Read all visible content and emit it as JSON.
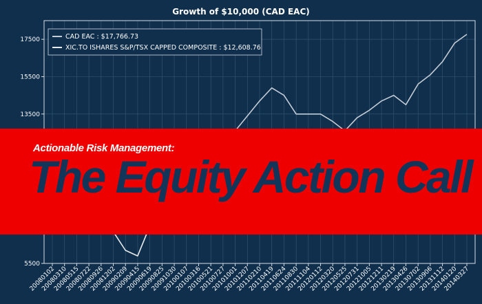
{
  "chart_data": {
    "type": "line",
    "title": "Growth of $10,000 (CAD EAC)",
    "xlabel": "",
    "ylabel": "",
    "ylim": [
      5500,
      18500
    ],
    "y_ticks": [
      5500,
      7500,
      9500,
      11500,
      13500,
      15500,
      17500
    ],
    "grid": true,
    "legend_position": "top-left",
    "x_tick_labels": [
      "20080102",
      "20080310",
      "20080515",
      "20080722",
      "20080926",
      "20081202",
      "20090209",
      "20090415",
      "20090619",
      "20090825",
      "20091030",
      "20100107",
      "20100316",
      "20100521",
      "20100727",
      "20101001",
      "20101207",
      "20110210",
      "20110419",
      "20110624",
      "20110830",
      "20111104",
      "20120112",
      "20120320",
      "20120525",
      "20120731",
      "20121005",
      "20121211",
      "20130219",
      "20130426",
      "20130702",
      "20130906",
      "20131112",
      "20140120",
      "20140327"
    ],
    "series": [
      {
        "name": "CAD EAC : $17,766.73",
        "color": "#c4ccd6",
        "x_index": [
          0,
          2,
          3,
          4,
          5,
          6,
          7,
          9,
          11,
          12,
          13,
          15,
          17,
          18,
          19,
          20,
          22,
          23,
          24,
          25,
          26,
          27,
          28,
          29,
          30,
          31,
          32,
          33,
          34
        ],
        "values": [
          10000,
          10150,
          10050,
          9650,
          9900,
          10300,
          10600,
          11200,
          11800,
          12300,
          11800,
          12600,
          14200,
          14900,
          14500,
          13500,
          13500,
          13100,
          12600,
          13300,
          13700,
          14200,
          14500,
          14000,
          15100,
          15600,
          16300,
          17300,
          17767
        ]
      },
      {
        "name": "XIC.TO ISHARES S&P/TSX CAPPED COMPOSITE : $12,608.76",
        "color": "#e8ecf0",
        "x_index": [
          0,
          1,
          2,
          3,
          4,
          5,
          6,
          7,
          8,
          9,
          10,
          11,
          12,
          13,
          14,
          15,
          16,
          17,
          18,
          19,
          20,
          21,
          22,
          23,
          24,
          25,
          26,
          27,
          28,
          29,
          30,
          31,
          32,
          33,
          34
        ],
        "values": [
          10000,
          9800,
          10200,
          9900,
          8600,
          7200,
          6200,
          5900,
          7500,
          8600,
          9100,
          9600,
          9700,
          9400,
          10000,
          10400,
          10900,
          11200,
          11000,
          10400,
          9800,
          10000,
          10100,
          10200,
          9800,
          9900,
          10100,
          10400,
          10700,
          10900,
          11200,
          11500,
          11900,
          12300,
          12609
        ]
      }
    ]
  },
  "banner": {
    "subtitle": "Actionable Risk Management:",
    "headline": "The Equity Action Call"
  }
}
